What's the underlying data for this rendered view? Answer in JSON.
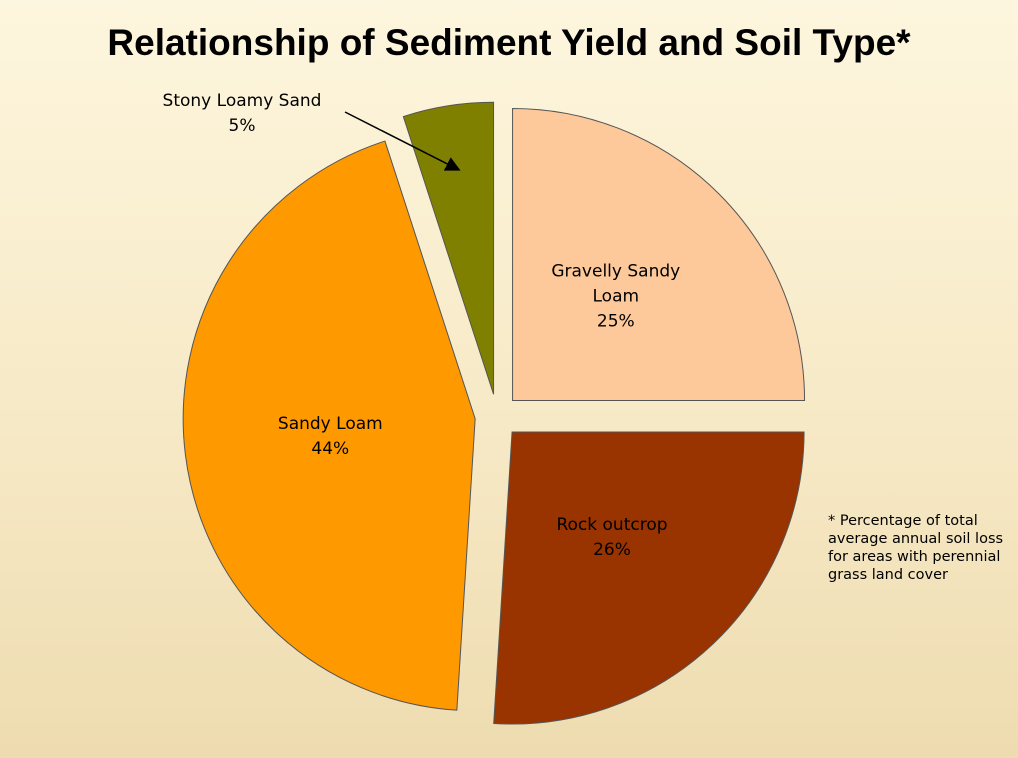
{
  "chart_data": {
    "type": "pie",
    "title": "Relationship of Sediment Yield and Soil Type*",
    "categories": [
      "Gravelly Sandy Loam",
      "Rock outcrop",
      "Sandy Loam",
      "Stony Loamy Sand"
    ],
    "values": [
      25,
      26,
      44,
      5
    ],
    "value_labels": [
      "25%",
      "26%",
      "44%",
      "5%"
    ],
    "colors": [
      "#fdc99a",
      "#993300",
      "#ff9900",
      "#808000"
    ],
    "annotation": "* Percentage of total average annual soil loss for areas with perennial grass land cover"
  }
}
